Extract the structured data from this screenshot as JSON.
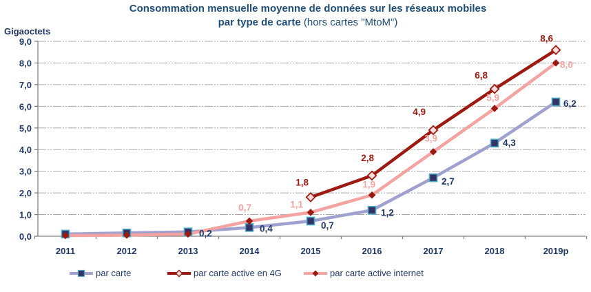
{
  "title": {
    "line1": "Consommation mensuelle moyenne de données sur les réseaux mobiles",
    "line2_bold": "par type de carte",
    "line2_regular": " (hors cartes \"MtoM\")"
  },
  "y_axis_label": "Gigaoctets",
  "chart_data": {
    "type": "line",
    "title": "Consommation mensuelle moyenne de données sur les réseaux mobiles par type de carte (hors cartes \"MtoM\")",
    "xlabel": "",
    "ylabel": "Gigaoctets",
    "ylim": [
      0,
      9
    ],
    "grid": "horizontal-dashed",
    "legend_position": "bottom",
    "categories": [
      "2011",
      "2012",
      "2013",
      "2014",
      "2015",
      "2016",
      "2017",
      "2018",
      "2019p"
    ],
    "y_ticks": [
      "0,0",
      "1,0",
      "2,0",
      "3,0",
      "4,0",
      "5,0",
      "6,0",
      "7,0",
      "8,0",
      "9,0"
    ],
    "colors": {
      "navy_text": "#1F3864",
      "grid": "#A8A8A8",
      "axis": "#7F7F7F"
    },
    "series": [
      {
        "name": "par carte",
        "color": "#9FA1D0",
        "label_color": "#1F3864",
        "marker": "square",
        "marker_fill": "#333366",
        "marker_stroke": "#4AACC5",
        "values": [
          0.1,
          0.15,
          0.2,
          0.4,
          0.7,
          1.2,
          2.7,
          4.3,
          6.2
        ],
        "labels": [
          {
            "i": 2,
            "t": "0,2",
            "dx": 16,
            "dy": 7,
            "a": "start"
          },
          {
            "i": 3,
            "t": "0,4",
            "dx": 15,
            "dy": 6,
            "a": "start"
          },
          {
            "i": 4,
            "t": "0,7",
            "dx": 15,
            "dy": 11,
            "a": "start"
          },
          {
            "i": 5,
            "t": "1,2",
            "dx": 13,
            "dy": 8,
            "a": "start"
          },
          {
            "i": 6,
            "t": "2,7",
            "dx": 12,
            "dy": 10,
            "a": "start"
          },
          {
            "i": 7,
            "t": "4,3",
            "dx": 12,
            "dy": 4,
            "a": "start"
          },
          {
            "i": 8,
            "t": "6,2",
            "dx": 11,
            "dy": 7,
            "a": "start"
          }
        ]
      },
      {
        "name": "par carte active en 4G",
        "color": "#9C1A10",
        "label_color": "#9C1A10",
        "marker": "diamond-open",
        "marker_fill": "#F9DCDB",
        "marker_stroke": "#9C1A10",
        "values": [
          null,
          null,
          null,
          null,
          1.8,
          2.8,
          4.9,
          6.8,
          8.6
        ],
        "labels": [
          {
            "i": 4,
            "t": "1,8",
            "dx": -3,
            "dy": -17,
            "a": "end"
          },
          {
            "i": 5,
            "t": "2,8",
            "dx": 3,
            "dy": -21,
            "a": "end"
          },
          {
            "i": 6,
            "t": "4,9",
            "dx": -11,
            "dy": -22,
            "a": "end"
          },
          {
            "i": 7,
            "t": "6,8",
            "dx": -10,
            "dy": -15,
            "a": "end"
          },
          {
            "i": 8,
            "t": "8,6",
            "dx": -4,
            "dy": -12,
            "a": "end"
          }
        ]
      },
      {
        "name": "par carte active internet",
        "color": "#F4A3A1",
        "label_color": "#F4A3A1",
        "marker": "diamond-solid",
        "marker_fill": "#9C1A10",
        "marker_stroke": "#9C1A10",
        "values": [
          0.03,
          0.05,
          0.1,
          0.7,
          1.1,
          1.9,
          3.9,
          5.9,
          8.0
        ],
        "labels": [
          {
            "i": 3,
            "t": "0,7",
            "dx": 3,
            "dy": -15,
            "a": "end"
          },
          {
            "i": 4,
            "t": "1,1",
            "dx": -11,
            "dy": -7,
            "a": "end"
          },
          {
            "i": 5,
            "t": "1,9",
            "dx": 5,
            "dy": -11,
            "a": "end"
          },
          {
            "i": 6,
            "t": "3,9",
            "dx": 6,
            "dy": -15,
            "a": "end"
          },
          {
            "i": 7,
            "t": "5,9",
            "dx": 7,
            "dy": -11,
            "a": "end"
          },
          {
            "i": 8,
            "t": "8,0",
            "dx": 6,
            "dy": 7,
            "a": "start"
          }
        ]
      }
    ]
  }
}
